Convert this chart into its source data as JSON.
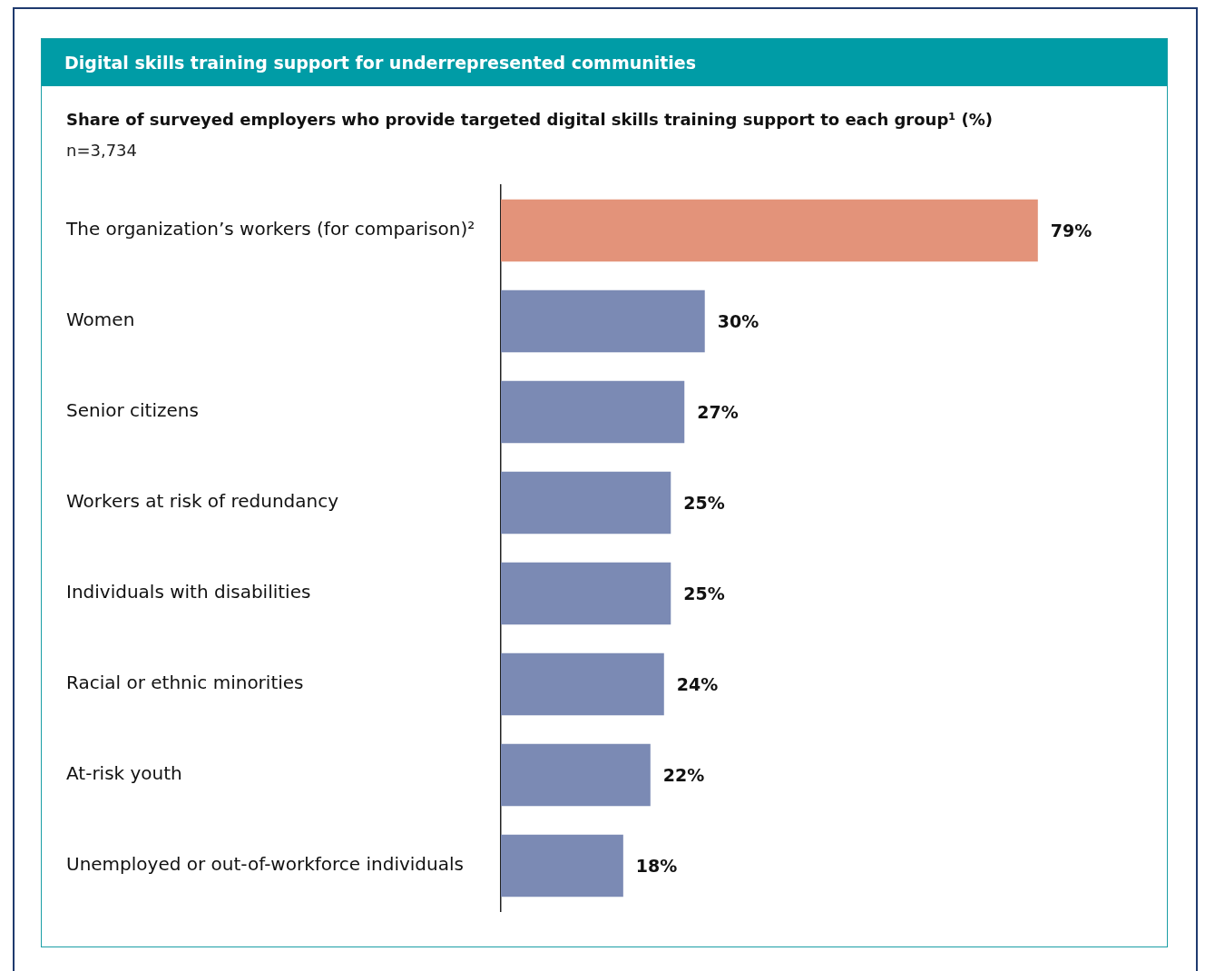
{
  "chart_data": {
    "type": "bar",
    "orientation": "horizontal",
    "title": "Digital skills training support for underrepresented communities",
    "subtitle": "Share of surveyed employers who provide targeted digital skills training support to each group¹ (%)",
    "annotations": [
      "n=3,734"
    ],
    "categories": [
      "The organization’s workers (for comparison)²",
      "Women",
      "Senior citizens",
      "Workers at risk of redundancy",
      "Individuals with disabilities",
      "Racial or ethnic minorities",
      "At-risk youth",
      "Unemployed or out-of-workforce individuals"
    ],
    "values": [
      79,
      30,
      27,
      25,
      25,
      24,
      22,
      18
    ],
    "colors": [
      "#e3937a",
      "#7b8ab4",
      "#7b8ab4",
      "#7b8ab4",
      "#7b8ab4",
      "#7b8ab4",
      "#7b8ab4",
      "#7b8ab4"
    ],
    "value_labels": [
      "79%",
      "30%",
      "27%",
      "25%",
      "25%",
      "24%",
      "22%",
      "18%"
    ]
  }
}
